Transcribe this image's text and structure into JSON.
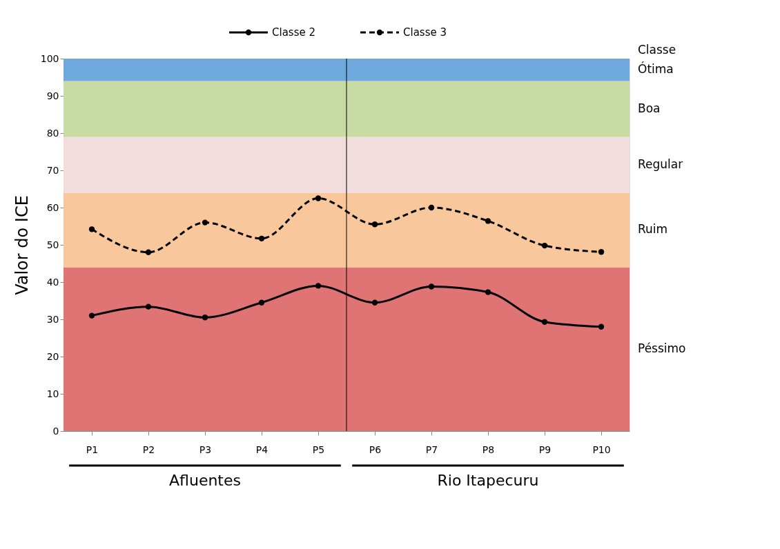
{
  "chart_data": {
    "type": "line",
    "ylabel": "Valor do ICE",
    "legend_title": "Classe",
    "categories": [
      "P1",
      "P2",
      "P3",
      "P4",
      "P5",
      "P6",
      "P7",
      "P8",
      "P9",
      "P10"
    ],
    "series": [
      {
        "name": "Classe 2",
        "color": "#000000",
        "line_style": "solid",
        "values": [
          31,
          33.4,
          30.5,
          34.5,
          39,
          34.5,
          38.8,
          37.3,
          29.3,
          28
        ]
      },
      {
        "name": "Classe 3",
        "color": "#000000",
        "line_style": "dashed",
        "values": [
          54.2,
          48,
          56,
          51.7,
          62.5,
          55.5,
          60,
          56.4,
          49.8,
          48.1
        ]
      }
    ],
    "ylim": [
      0,
      100
    ],
    "yticks": [
      0,
      10,
      20,
      30,
      40,
      50,
      60,
      70,
      80,
      90,
      100
    ],
    "bands": [
      {
        "axis": "y",
        "from": 0,
        "to": 44,
        "label": "Péssimo",
        "color": "#e07373"
      },
      {
        "axis": "y",
        "from": 44,
        "to": 64,
        "label": "Ruim",
        "color": "#f8c89c"
      },
      {
        "axis": "y",
        "from": 64,
        "to": 79,
        "label": "Regular",
        "color": "#f2dcdc"
      },
      {
        "axis": "y",
        "from": 79,
        "to": 94,
        "label": "Boa",
        "color": "#c8dba2"
      },
      {
        "axis": "y",
        "from": 94,
        "to": 100,
        "label": "Ótima",
        "color": "#6fa8dc"
      }
    ],
    "annotations": [
      "Afluentes",
      "Rio Itapecuru"
    ],
    "marker": "circle",
    "grid": false,
    "legend": "top"
  }
}
